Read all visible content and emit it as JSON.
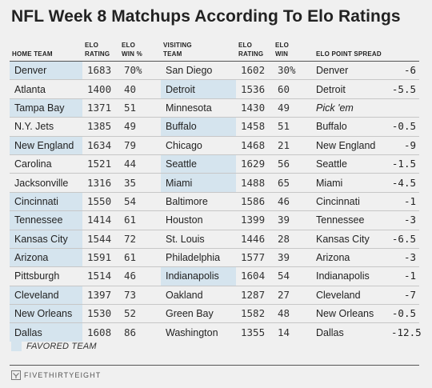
{
  "title": "NFL Week 8 Matchups According To Elo Ratings",
  "headers": {
    "home_team": "HOME TEAM",
    "home_elo": "ELO\nRATING",
    "home_win": "ELO\nWIN %",
    "visiting_team": "VISITING\nTEAM",
    "visit_elo": "ELO\nRATING",
    "visit_win": "ELO\nWIN",
    "spread": "ELO POINT SPREAD"
  },
  "rows": [
    {
      "home": "Denver",
      "home_elo": "1683",
      "home_win": "70%",
      "visit": "San Diego",
      "visit_elo": "1602",
      "visit_win": "30%",
      "spread_team": "Denver",
      "spread": "-6",
      "favored": "home"
    },
    {
      "home": "Atlanta",
      "home_elo": "1400",
      "home_win": "40",
      "visit": "Detroit",
      "visit_elo": "1536",
      "visit_win": "60",
      "spread_team": "Detroit",
      "spread": "-5.5",
      "favored": "visit"
    },
    {
      "home": "Tampa Bay",
      "home_elo": "1371",
      "home_win": "51",
      "visit": "Minnesota",
      "visit_elo": "1430",
      "visit_win": "49",
      "spread_team": "Pick 'em",
      "spread": "",
      "favored": "home"
    },
    {
      "home": "N.Y. Jets",
      "home_elo": "1385",
      "home_win": "49",
      "visit": "Buffalo",
      "visit_elo": "1458",
      "visit_win": "51",
      "spread_team": "Buffalo",
      "spread": "-0.5",
      "favored": "visit"
    },
    {
      "home": "New England",
      "home_elo": "1634",
      "home_win": "79",
      "visit": "Chicago",
      "visit_elo": "1468",
      "visit_win": "21",
      "spread_team": "New England",
      "spread": "-9",
      "favored": "home"
    },
    {
      "home": "Carolina",
      "home_elo": "1521",
      "home_win": "44",
      "visit": "Seattle",
      "visit_elo": "1629",
      "visit_win": "56",
      "spread_team": "Seattle",
      "spread": "-1.5",
      "favored": "visit"
    },
    {
      "home": "Jacksonville",
      "home_elo": "1316",
      "home_win": "35",
      "visit": "Miami",
      "visit_elo": "1488",
      "visit_win": "65",
      "spread_team": "Miami",
      "spread": "-4.5",
      "favored": "visit"
    },
    {
      "home": "Cincinnati",
      "home_elo": "1550",
      "home_win": "54",
      "visit": "Baltimore",
      "visit_elo": "1586",
      "visit_win": "46",
      "spread_team": "Cincinnati",
      "spread": "-1",
      "favored": "home"
    },
    {
      "home": "Tennessee",
      "home_elo": "1414",
      "home_win": "61",
      "visit": "Houston",
      "visit_elo": "1399",
      "visit_win": "39",
      "spread_team": "Tennessee",
      "spread": "-3",
      "favored": "home"
    },
    {
      "home": "Kansas City",
      "home_elo": "1544",
      "home_win": "72",
      "visit": "St. Louis",
      "visit_elo": "1446",
      "visit_win": "28",
      "spread_team": "Kansas City",
      "spread": "-6.5",
      "favored": "home"
    },
    {
      "home": "Arizona",
      "home_elo": "1591",
      "home_win": "61",
      "visit": "Philadelphia",
      "visit_elo": "1577",
      "visit_win": "39",
      "spread_team": "Arizona",
      "spread": "-3",
      "favored": "home"
    },
    {
      "home": "Pittsburgh",
      "home_elo": "1514",
      "home_win": "46",
      "visit": "Indianapolis",
      "visit_elo": "1604",
      "visit_win": "54",
      "spread_team": "Indianapolis",
      "spread": "-1",
      "favored": "visit"
    },
    {
      "home": "Cleveland",
      "home_elo": "1397",
      "home_win": "73",
      "visit": "Oakland",
      "visit_elo": "1287",
      "visit_win": "27",
      "spread_team": "Cleveland",
      "spread": "-7",
      "favored": "home"
    },
    {
      "home": "New Orleans",
      "home_elo": "1530",
      "home_win": "52",
      "visit": "Green Bay",
      "visit_elo": "1582",
      "visit_win": "48",
      "spread_team": "New Orleans",
      "spread": "-0.5",
      "favored": "home"
    },
    {
      "home": "Dallas",
      "home_elo": "1608",
      "home_win": "86",
      "visit": "Washington",
      "visit_elo": "1355",
      "visit_win": "14",
      "spread_team": "Dallas",
      "spread": "-12.5",
      "favored": "home"
    }
  ],
  "legend": {
    "label": "FAVORED TEAM",
    "color": "#d5e4ee"
  },
  "brand": {
    "name": "FIVETHIRTYEIGHT",
    "icon": "fivethirtyeight-logo-icon"
  }
}
